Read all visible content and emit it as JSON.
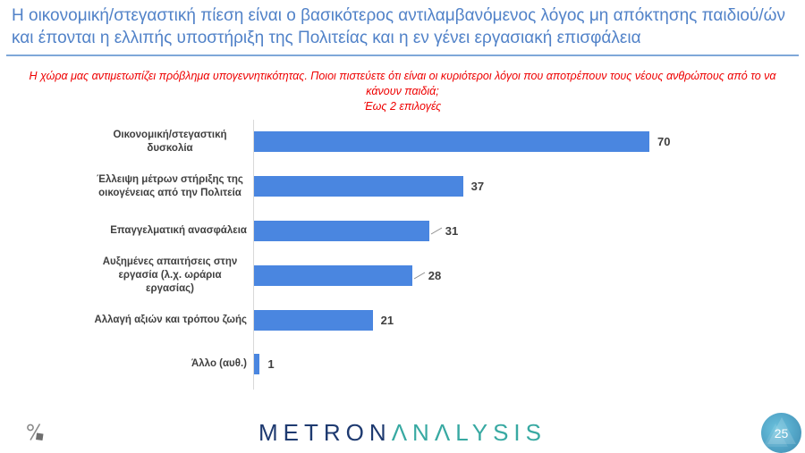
{
  "slide": {
    "title": "Η οικονομική/στεγαστική πίεση είναι ο βασικότερος αντιλαμβανόμενος λόγος μη απόκτησης παιδιού/ών και έπονται η ελλιπής υποστήριξη της Πολιτείας και η εν γένει εργασιακή επισφάλεια",
    "subtitle_question": "Η χώρα μας αντιμετωπίζει πρόβλημα υπογεννητικότητας. Ποιοι πιστεύετε ότι είναι οι κυριότεροι λόγοι που αποτρέπουν τους νέους ανθρώπους από το να κάνουν παιδιά;",
    "subtitle_note": "Έως 2 επιλογές",
    "page_number": "25"
  },
  "footer": {
    "logo_primary": "METRON",
    "logo_secondary": "ΛNΛLYSIS"
  },
  "chart_data": {
    "type": "bar",
    "orientation": "horizontal",
    "title": "",
    "categories": [
      "Οικονομική/στεγαστική δυσκολία",
      "Έλλειψη μέτρων στήριξης της οικογένειας από την Πολιτεία",
      "Επαγγελματική ανασφάλεια",
      "Αυξημένες απαιτήσεις στην εργασία (λ.χ. ωράρια εργασίας)",
      "Αλλαγή αξιών και τρόπου ζωής",
      "Άλλο (αυθ.)"
    ],
    "values": [
      70,
      37,
      31,
      28,
      21,
      1
    ],
    "xlim": [
      0,
      70
    ],
    "grid": "none",
    "legend": "none",
    "value_labels_shown": true,
    "callout_rows": [
      2,
      3
    ],
    "bar_color": "#4A86E0",
    "label_color": "#3f3f3f",
    "axis_line_color": "#D9D9D9"
  },
  "colors": {
    "title_blue": "#5182C8",
    "underline_blue": "#7FA8D9",
    "subtitle_red": "#EE0000",
    "logo_navy": "#1E3A70",
    "logo_teal": "#38A9A2",
    "page_badge_teal": "#54A7C9"
  }
}
